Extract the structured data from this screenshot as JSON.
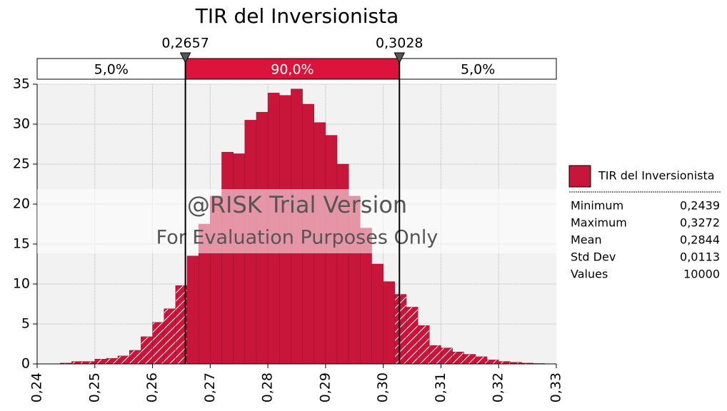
{
  "chart_data": {
    "type": "histogram",
    "title": "TIR del Inversionista",
    "bins": [
      0.244,
      0.246,
      0.248,
      0.25,
      0.252,
      0.254,
      0.256,
      0.258,
      0.26,
      0.262,
      0.264,
      0.266,
      0.268,
      0.27,
      0.272,
      0.274,
      0.276,
      0.278,
      0.28,
      0.282,
      0.284,
      0.286,
      0.288,
      0.29,
      0.292,
      0.294,
      0.296,
      0.298,
      0.3,
      0.302,
      0.304,
      0.306,
      0.308,
      0.31,
      0.312,
      0.314,
      0.316,
      0.318,
      0.32,
      0.322,
      0.324,
      0.326,
      0.328
    ],
    "counts": [
      0.1,
      0.3,
      0.3,
      0.6,
      0.7,
      1.0,
      1.7,
      3.4,
      5.2,
      6.9,
      9.8,
      13.5,
      17.5,
      21,
      26.5,
      26.3,
      30.5,
      31.5,
      33.9,
      33.6,
      34.4,
      32.5,
      30.2,
      28.6,
      25,
      21,
      17,
      12.5,
      10.3,
      8.7,
      7.1,
      4.8,
      2.3,
      2.0,
      1.5,
      1.2,
      0.9,
      0.5,
      0.3,
      0.2,
      0.1,
      0.05
    ],
    "color": "#c8153a",
    "xlim": [
      0.24,
      0.33
    ],
    "xticks": [
      {
        "value": 0.24,
        "label": "0,24"
      },
      {
        "value": 0.25,
        "label": "0,25"
      },
      {
        "value": 0.26,
        "label": "0,26"
      },
      {
        "value": 0.27,
        "label": "0,27"
      },
      {
        "value": 0.28,
        "label": "0,28"
      },
      {
        "value": 0.29,
        "label": "0,29"
      },
      {
        "value": 0.3,
        "label": "0,30"
      },
      {
        "value": 0.31,
        "label": "0,31"
      },
      {
        "value": 0.32,
        "label": "0,32"
      },
      {
        "value": 0.33,
        "label": "0,33"
      }
    ],
    "ylim": [
      0,
      35
    ],
    "yticks": [
      0,
      5,
      10,
      15,
      20,
      25,
      30,
      35
    ],
    "grid": true,
    "delimiters": [
      {
        "value": 0.2657,
        "label": "0,2657"
      },
      {
        "value": 0.3028,
        "label": "0,3028"
      }
    ],
    "regions": [
      {
        "value": 5,
        "label": "5,0%"
      },
      {
        "value": 90,
        "label": "90,0%"
      },
      {
        "value": 5,
        "label": "5,0%"
      }
    ],
    "legend": {
      "name": "TIR del Inversionista",
      "stats": [
        {
          "label": "Minimum",
          "value": "0,2439"
        },
        {
          "label": "Maximum",
          "value": "0,3272"
        },
        {
          "label": "Mean",
          "value": "0,2844"
        },
        {
          "label": "Std Dev",
          "value": "0,0113"
        },
        {
          "label": "Values",
          "value": "10000"
        }
      ]
    },
    "watermark": [
      "@RISK Trial Version",
      "For Evaluation Purposes Only"
    ]
  }
}
